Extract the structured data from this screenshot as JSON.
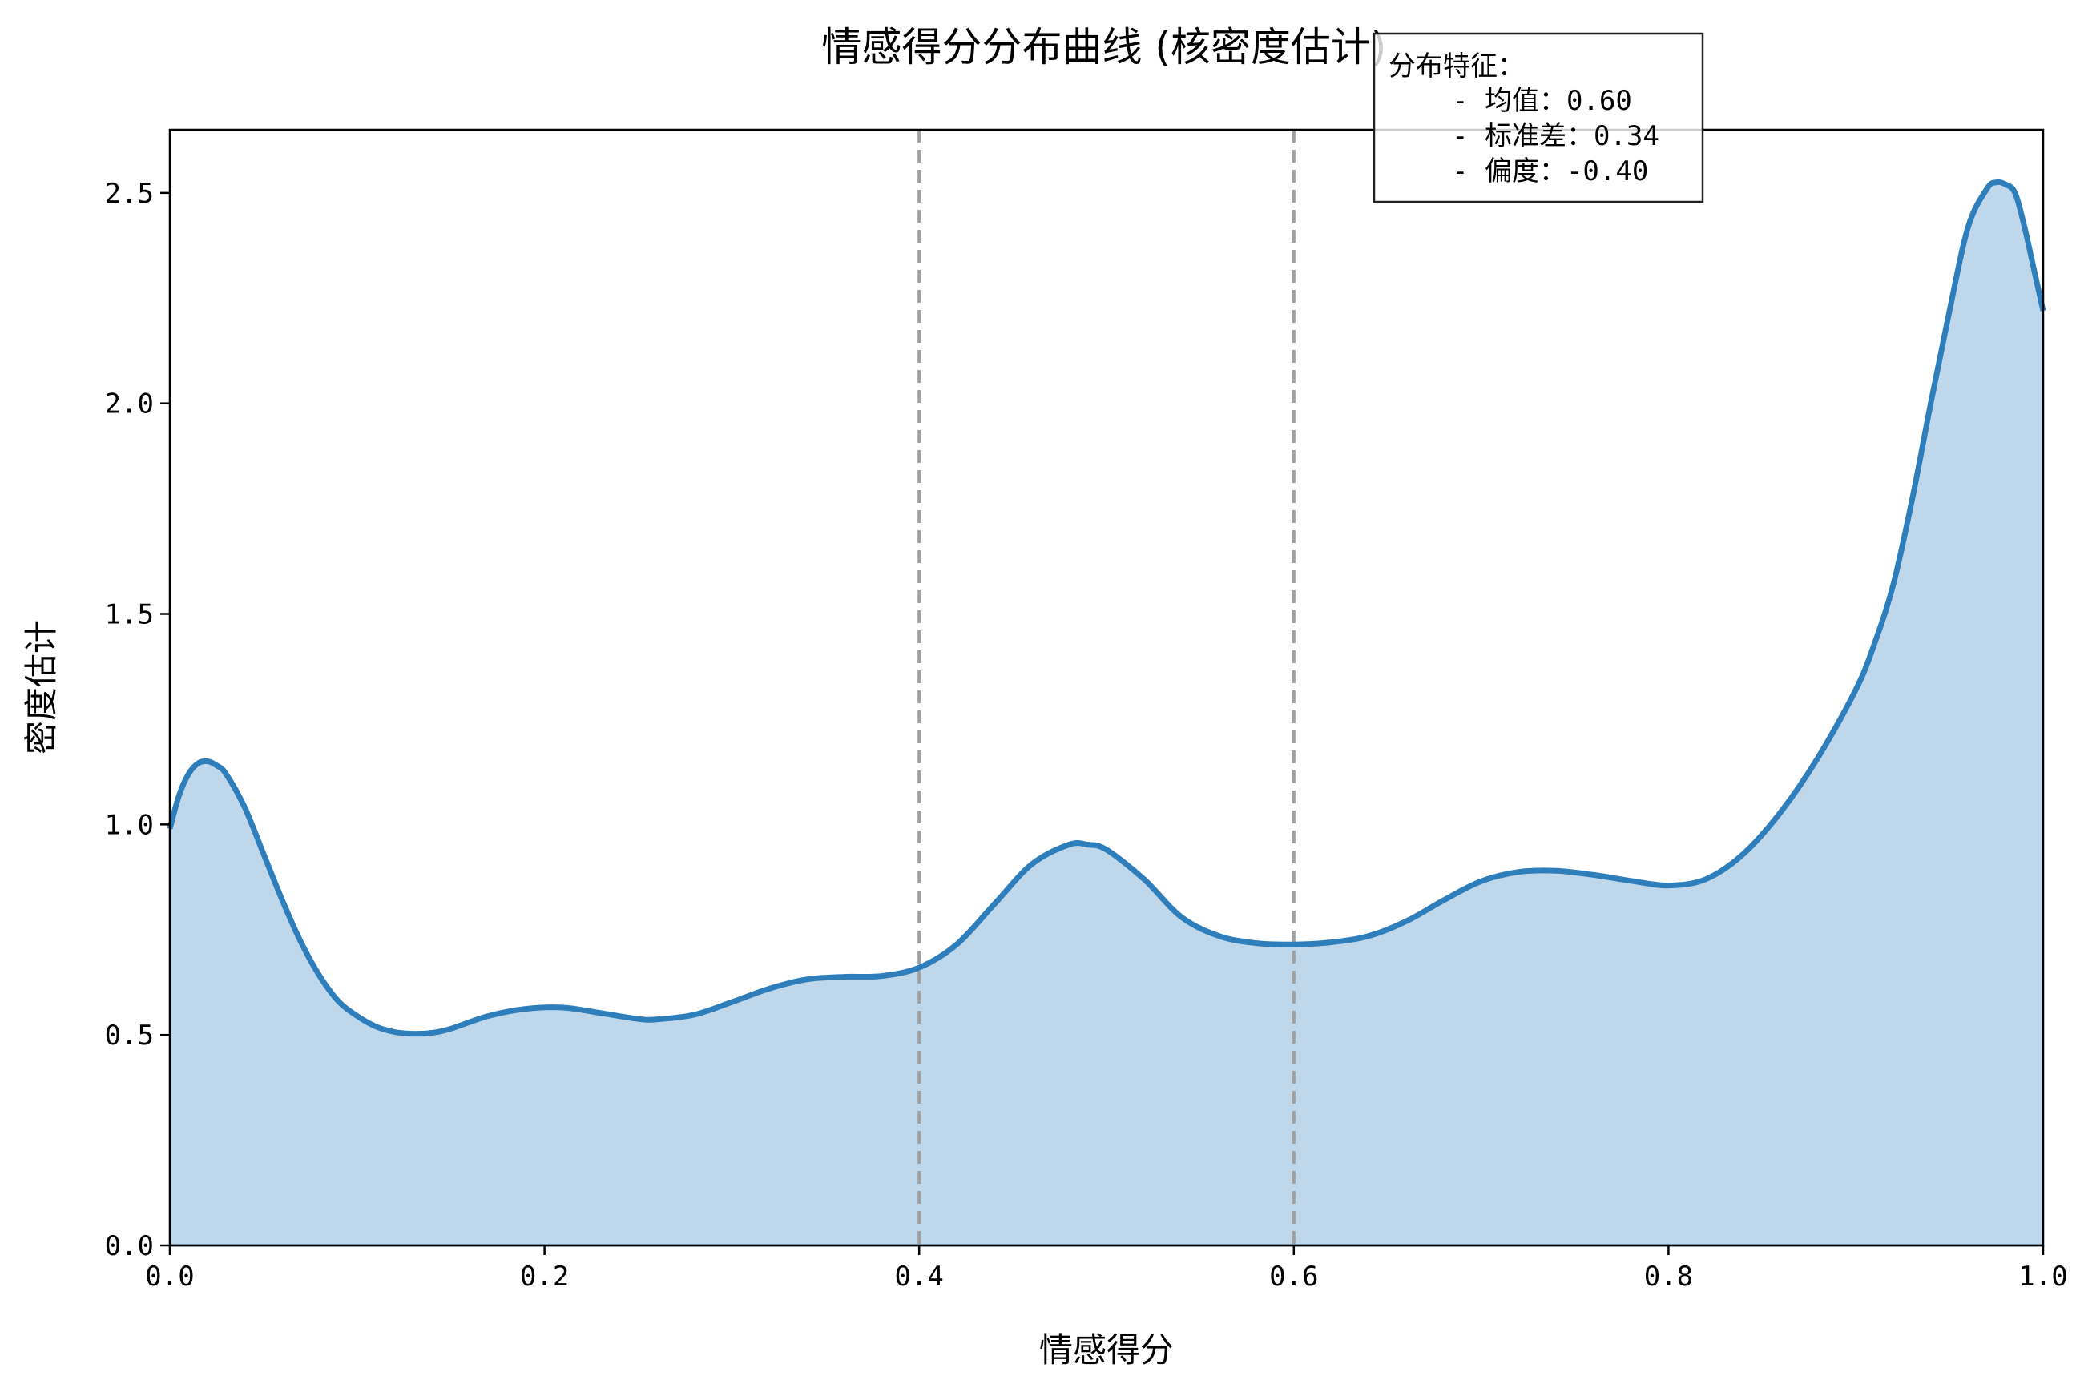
{
  "chart_data": {
    "type": "area",
    "title": "情感得分分布曲线 (核密度估计)",
    "xlabel": "情感得分",
    "ylabel": "密度估计",
    "xlim": [
      0.0,
      1.0
    ],
    "ylim": [
      0.0,
      2.65
    ],
    "x_ticks": [
      "0.0",
      "0.2",
      "0.4",
      "0.6",
      "0.8",
      "1.0"
    ],
    "y_ticks": [
      "0.0",
      "0.5",
      "1.0",
      "1.5",
      "2.0",
      "2.5"
    ],
    "grid": false,
    "line_color": "#2f7ebc",
    "fill_color": "#bfd7ea",
    "reference_line_color": "#a0a0a0",
    "reference_lines_x": [
      0.4,
      0.6
    ],
    "x": [
      0.0,
      0.005,
      0.01,
      0.015,
      0.02,
      0.025,
      0.03,
      0.04,
      0.05,
      0.06,
      0.07,
      0.08,
      0.09,
      0.1,
      0.11,
      0.12,
      0.13,
      0.14,
      0.15,
      0.17,
      0.19,
      0.21,
      0.23,
      0.25,
      0.26,
      0.28,
      0.3,
      0.32,
      0.34,
      0.36,
      0.38,
      0.4,
      0.42,
      0.44,
      0.46,
      0.48,
      0.49,
      0.5,
      0.52,
      0.54,
      0.56,
      0.58,
      0.6,
      0.62,
      0.64,
      0.66,
      0.68,
      0.7,
      0.72,
      0.74,
      0.76,
      0.78,
      0.8,
      0.82,
      0.84,
      0.86,
      0.88,
      0.9,
      0.91,
      0.92,
      0.93,
      0.94,
      0.95,
      0.96,
      0.97,
      0.975,
      0.98,
      0.985,
      0.99,
      0.995,
      1.0
    ],
    "y": [
      0.99,
      1.07,
      1.12,
      1.145,
      1.15,
      1.14,
      1.12,
      1.04,
      0.93,
      0.82,
      0.72,
      0.64,
      0.58,
      0.545,
      0.52,
      0.507,
      0.503,
      0.505,
      0.515,
      0.545,
      0.562,
      0.565,
      0.552,
      0.538,
      0.537,
      0.548,
      0.578,
      0.61,
      0.632,
      0.638,
      0.64,
      0.66,
      0.715,
      0.81,
      0.905,
      0.952,
      0.952,
      0.94,
      0.87,
      0.78,
      0.735,
      0.718,
      0.715,
      0.72,
      0.735,
      0.77,
      0.82,
      0.865,
      0.887,
      0.89,
      0.88,
      0.866,
      0.855,
      0.87,
      0.93,
      1.03,
      1.16,
      1.32,
      1.43,
      1.57,
      1.77,
      2.0,
      2.22,
      2.42,
      2.51,
      2.525,
      2.52,
      2.5,
      2.42,
      2.32,
      2.22
    ],
    "annotation": {
      "title": "分布特征：",
      "lines": [
        "- 均值：0.60",
        "- 标准差：0.34",
        "- 偏度：-0.40"
      ]
    }
  }
}
